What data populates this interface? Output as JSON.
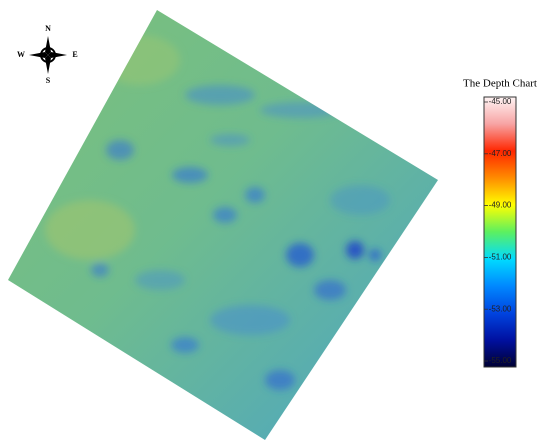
{
  "compass": {
    "north": "N",
    "south": "S",
    "west": "W",
    "east": "E"
  },
  "legend": {
    "title": "The Depth Chart",
    "ticks": [
      {
        "value": -45,
        "label": "-45.00"
      },
      {
        "value": -47,
        "label": "-47.00"
      },
      {
        "value": -49,
        "label": "-49.00"
      },
      {
        "value": -51,
        "label": "-51.00"
      },
      {
        "value": -53,
        "label": "-53.00"
      },
      {
        "value": -55,
        "label": "-55.00"
      }
    ]
  }
}
